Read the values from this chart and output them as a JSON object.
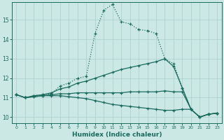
{
  "xlabel": "Humidex (Indice chaleur)",
  "background_color": "#cce8e5",
  "grid_color": "#aacfcc",
  "line_color": "#1a6b5e",
  "xlim": [
    -0.5,
    23.5
  ],
  "ylim": [
    9.7,
    15.9
  ],
  "yticks": [
    10,
    11,
    12,
    13,
    14,
    15
  ],
  "xticks": [
    0,
    1,
    2,
    3,
    4,
    5,
    6,
    7,
    8,
    9,
    10,
    11,
    12,
    13,
    14,
    15,
    16,
    17,
    18,
    19,
    20,
    21,
    22,
    23
  ],
  "line1_x": [
    0,
    1,
    2,
    3,
    4,
    5,
    6,
    7,
    8,
    9,
    10,
    11,
    12,
    13,
    14,
    15,
    16,
    17,
    18,
    19,
    20,
    21,
    22,
    23
  ],
  "line1_y": [
    11.15,
    11.0,
    11.1,
    11.15,
    11.2,
    11.6,
    11.75,
    12.0,
    12.1,
    14.3,
    15.5,
    15.8,
    14.9,
    14.8,
    14.5,
    14.45,
    14.3,
    13.0,
    12.75,
    11.5,
    10.4,
    10.0,
    10.15,
    10.2
  ],
  "line2_x": [
    0,
    1,
    2,
    3,
    4,
    5,
    6,
    7,
    8,
    9,
    10,
    11,
    12,
    13,
    14,
    15,
    16,
    17,
    18,
    19,
    20,
    21,
    22,
    23
  ],
  "line2_y": [
    11.15,
    11.0,
    11.1,
    11.15,
    11.25,
    11.45,
    11.55,
    11.75,
    11.85,
    12.0,
    12.15,
    12.3,
    12.45,
    12.55,
    12.65,
    12.75,
    12.85,
    13.0,
    12.6,
    11.5,
    10.4,
    10.0,
    10.15,
    10.2
  ],
  "line3_x": [
    0,
    1,
    2,
    3,
    4,
    5,
    6,
    7,
    8,
    9,
    10,
    11,
    12,
    13,
    14,
    15,
    16,
    17,
    18,
    19,
    20,
    21,
    22,
    23
  ],
  "line3_y": [
    11.15,
    11.0,
    11.05,
    11.1,
    11.15,
    11.2,
    11.2,
    11.25,
    11.25,
    11.25,
    11.25,
    11.25,
    11.25,
    11.3,
    11.3,
    11.3,
    11.3,
    11.35,
    11.3,
    11.3,
    10.4,
    10.0,
    10.15,
    10.2
  ],
  "line4_x": [
    0,
    1,
    2,
    3,
    4,
    5,
    6,
    7,
    8,
    9,
    10,
    11,
    12,
    13,
    14,
    15,
    16,
    17,
    18,
    19,
    20,
    21,
    22,
    23
  ],
  "line4_y": [
    11.15,
    11.0,
    11.05,
    11.1,
    11.1,
    11.1,
    11.05,
    11.0,
    10.95,
    10.85,
    10.75,
    10.65,
    10.6,
    10.55,
    10.5,
    10.45,
    10.4,
    10.35,
    10.35,
    10.4,
    10.4,
    10.0,
    10.15,
    10.2
  ]
}
